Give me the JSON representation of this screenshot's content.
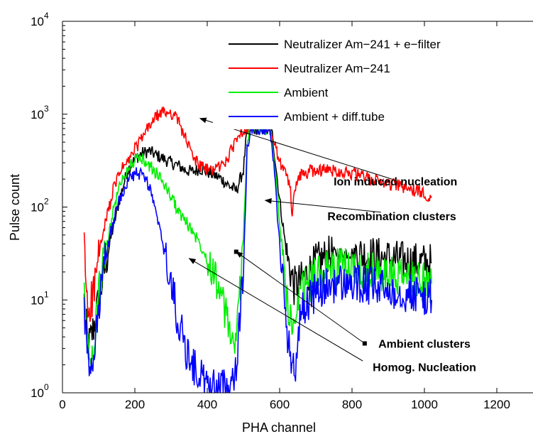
{
  "chart_data": {
    "type": "line",
    "title": "",
    "xlabel": "PHA channel",
    "ylabel": "Pulse count",
    "xlim": [
      0,
      1300
    ],
    "ylim": [
      1,
      10000
    ],
    "yscale": "log",
    "grid": false,
    "x_ticks": [
      0,
      200,
      400,
      600,
      800,
      1000,
      1200
    ],
    "x_tick_labels": [
      "0",
      "200",
      "400",
      "600",
      "800",
      "1000",
      "1200"
    ],
    "y_ticks": [
      1,
      10,
      100,
      1000,
      10000
    ],
    "y_tick_labels": [
      {
        "base": "10",
        "exp": "0"
      },
      {
        "base": "10",
        "exp": "1"
      },
      {
        "base": "10",
        "exp": "2"
      },
      {
        "base": "10",
        "exp": "3"
      },
      {
        "base": "10",
        "exp": "4"
      }
    ],
    "legend_position": "top-right",
    "series": [
      {
        "name": "Neutralizer Am−241 + e−filter",
        "color": "#000000",
        "x": [
          60,
          70,
          80,
          90,
          100,
          120,
          140,
          160,
          180,
          200,
          220,
          240,
          260,
          280,
          300,
          320,
          340,
          360,
          380,
          400,
          420,
          440,
          460,
          480,
          500,
          510,
          520,
          570,
          580,
          600,
          620,
          640,
          660,
          680,
          700,
          750,
          800,
          850,
          900,
          950,
          1000,
          1020
        ],
        "y": [
          10,
          3,
          4,
          6,
          10,
          25,
          60,
          130,
          250,
          330,
          380,
          400,
          360,
          330,
          300,
          280,
          250,
          240,
          260,
          240,
          220,
          200,
          170,
          150,
          250,
          700,
          700,
          700,
          600,
          120,
          30,
          14,
          16,
          20,
          25,
          32,
          32,
          30,
          28,
          26,
          25,
          25
        ]
      },
      {
        "name": "Neutralizer Am−241",
        "color": "#ff0000",
        "x": [
          60,
          65,
          70,
          80,
          90,
          100,
          120,
          140,
          160,
          180,
          200,
          220,
          240,
          260,
          280,
          300,
          320,
          340,
          360,
          380,
          400,
          420,
          440,
          460,
          480,
          500,
          510,
          520,
          570,
          580,
          600,
          610,
          620,
          630,
          635,
          640,
          650,
          660,
          680,
          700,
          750,
          800,
          850,
          900,
          950,
          1000,
          1020
        ],
        "y": [
          50,
          15,
          8,
          10,
          15,
          30,
          70,
          150,
          250,
          300,
          420,
          550,
          750,
          950,
          1050,
          1050,
          850,
          550,
          350,
          280,
          250,
          260,
          280,
          350,
          550,
          700,
          700,
          700,
          700,
          600,
          300,
          250,
          220,
          150,
          70,
          150,
          210,
          220,
          240,
          250,
          250,
          230,
          200,
          180,
          160,
          140,
          130
        ]
      },
      {
        "name": "Ambient",
        "color": "#00ee00",
        "x": [
          60,
          70,
          80,
          90,
          100,
          120,
          140,
          160,
          180,
          200,
          220,
          240,
          260,
          280,
          300,
          320,
          340,
          360,
          380,
          400,
          420,
          440,
          460,
          480,
          500,
          510,
          520,
          570,
          580,
          600,
          620,
          640,
          660,
          680,
          700,
          750,
          800,
          850,
          900,
          950,
          1000,
          1020
        ],
        "y": [
          12,
          3,
          2,
          5,
          12,
          35,
          90,
          180,
          260,
          320,
          330,
          280,
          230,
          180,
          130,
          90,
          70,
          55,
          40,
          30,
          20,
          10,
          5,
          3,
          50,
          500,
          700,
          700,
          550,
          70,
          10,
          4,
          12,
          15,
          18,
          22,
          22,
          20,
          18,
          17,
          16,
          15
        ]
      },
      {
        "name": "Ambient + diff.tube",
        "color": "#0000ff",
        "x": [
          60,
          70,
          80,
          90,
          100,
          120,
          140,
          160,
          180,
          200,
          220,
          240,
          260,
          280,
          300,
          320,
          340,
          360,
          380,
          400,
          420,
          440,
          460,
          480,
          500,
          510,
          520,
          570,
          580,
          600,
          620,
          640,
          660,
          680,
          700,
          750,
          800,
          850,
          900,
          950,
          1000,
          1020
        ],
        "y": [
          8,
          2,
          1.5,
          3,
          8,
          30,
          70,
          130,
          190,
          230,
          220,
          170,
          80,
          35,
          15,
          6,
          3,
          2,
          1.5,
          1.2,
          1.1,
          1.1,
          1.2,
          2,
          20,
          400,
          700,
          700,
          450,
          40,
          5,
          1.5,
          8,
          10,
          12,
          15,
          15,
          14,
          13,
          12,
          11,
          10
        ]
      }
    ],
    "annotations": [
      {
        "text": "Ion induced nucleation",
        "label_x": 920,
        "label_y": 190,
        "tail_x": 910,
        "tail_y": 200,
        "head_x": 380,
        "head_y": 900
      },
      {
        "text": "Recombination clusters",
        "label_x": 910,
        "label_y": 80,
        "tail_x": 880,
        "tail_y": 88,
        "head_x": 560,
        "head_y": 118
      },
      {
        "text": "Ambient clusters",
        "label_x": 1000,
        "label_y": 3.4,
        "tail_x": 835,
        "tail_y": 3.4,
        "head_x": 480,
        "head_y": 33
      },
      {
        "text": "Homog. Nucleation",
        "label_x": 1000,
        "label_y": 1.9,
        "tail_x": 830,
        "tail_y": 2.2,
        "head_x": 350,
        "head_y": 28
      }
    ]
  }
}
